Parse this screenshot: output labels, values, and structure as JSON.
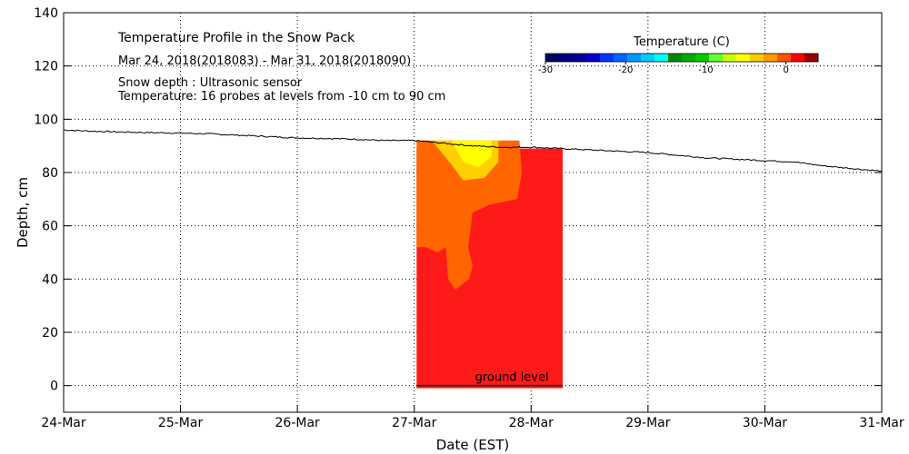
{
  "chart_data": {
    "type": "heatmap",
    "title": "Temperature Profile in the Snow Pack",
    "subtitle": "Mar 24, 2018(2018083) - Mar 31, 2018(2018090)",
    "notes": [
      "Snow depth : Ultrasonic sensor",
      "Temperature: 16 probes at levels from -10 cm to 90 cm"
    ],
    "xlabel": "Date (EST)",
    "ylabel": "Depth, cm",
    "x_range": [
      0,
      7
    ],
    "x_ticks": [
      "24-Mar",
      "25-Mar",
      "26-Mar",
      "27-Mar",
      "28-Mar",
      "29-Mar",
      "30-Mar",
      "31-Mar"
    ],
    "ylim": [
      -10,
      140
    ],
    "y_ticks": [
      0,
      20,
      40,
      60,
      80,
      100,
      120,
      140
    ],
    "grid": true,
    "ground_label": "ground level",
    "colorbar": {
      "title": "Temperature (C)",
      "range": [
        -30,
        4
      ],
      "ticks": [
        -30,
        -20,
        -10,
        0
      ],
      "colors": [
        "#000066",
        "#00007f",
        "#000099",
        "#0000cc",
        "#0033ff",
        "#0066ff",
        "#0099ff",
        "#00ccff",
        "#00ffff",
        "#008800",
        "#00aa00",
        "#00cc00",
        "#66ff33",
        "#ccff00",
        "#ffff00",
        "#ffcc00",
        "#ff9900",
        "#ff5500",
        "#ff0000",
        "#990000"
      ]
    },
    "snow_depth": {
      "days": [
        0,
        0.25,
        0.5,
        0.75,
        1,
        1.25,
        1.5,
        1.75,
        2,
        2.25,
        2.5,
        2.75,
        3,
        3.25,
        3.5,
        3.75,
        4,
        4.25,
        4.5,
        4.75,
        5,
        5.25,
        5.5,
        5.75,
        6,
        6.25,
        6.5,
        6.75,
        7
      ],
      "depth_cm": [
        96,
        95.5,
        95.2,
        95,
        94.8,
        94.5,
        94,
        93.5,
        93,
        92.8,
        92.5,
        92,
        92,
        91,
        90,
        89.5,
        89.5,
        89,
        88.5,
        88,
        87.5,
        86.5,
        85.5,
        85,
        84.5,
        84,
        82.5,
        81.5,
        80.5
      ]
    },
    "temperature_field": {
      "day_range": [
        3.02,
        4.27
      ],
      "top_cm": 89,
      "bottom_cm": -1,
      "regions": [
        {
          "range": "0 to 4 C",
          "color": "#ff1a1a",
          "days": [
            3.02,
            4.27
          ],
          "depth_cm": [
            -1,
            89
          ]
        },
        {
          "range": "-2 to 0 C",
          "color": "#ff6600",
          "outline": [
            [
              3.02,
              92
            ],
            [
              3.9,
              92
            ],
            [
              3.92,
              80
            ],
            [
              3.88,
              70
            ],
            [
              3.65,
              68
            ],
            [
              3.5,
              65
            ],
            [
              3.46,
              52
            ],
            [
              3.5,
              45
            ],
            [
              3.47,
              40
            ],
            [
              3.35,
              36
            ],
            [
              3.29,
              40
            ],
            [
              3.27,
              52
            ],
            [
              3.2,
              50
            ],
            [
              3.1,
              52
            ],
            [
              3.02,
              52
            ]
          ]
        },
        {
          "range": "-4 to -2 C",
          "color": "#ffd000",
          "outline": [
            [
              3.15,
              92
            ],
            [
              3.72,
              92
            ],
            [
              3.72,
              84
            ],
            [
              3.6,
              78
            ],
            [
              3.42,
              77
            ],
            [
              3.3,
              84
            ]
          ]
        },
        {
          "range": "-6 to -4 C",
          "color": "#ffff00",
          "outline": [
            [
              3.32,
              92
            ],
            [
              3.66,
              92
            ],
            [
              3.66,
              86
            ],
            [
              3.55,
              82
            ],
            [
              3.42,
              84
            ]
          ]
        }
      ]
    }
  }
}
